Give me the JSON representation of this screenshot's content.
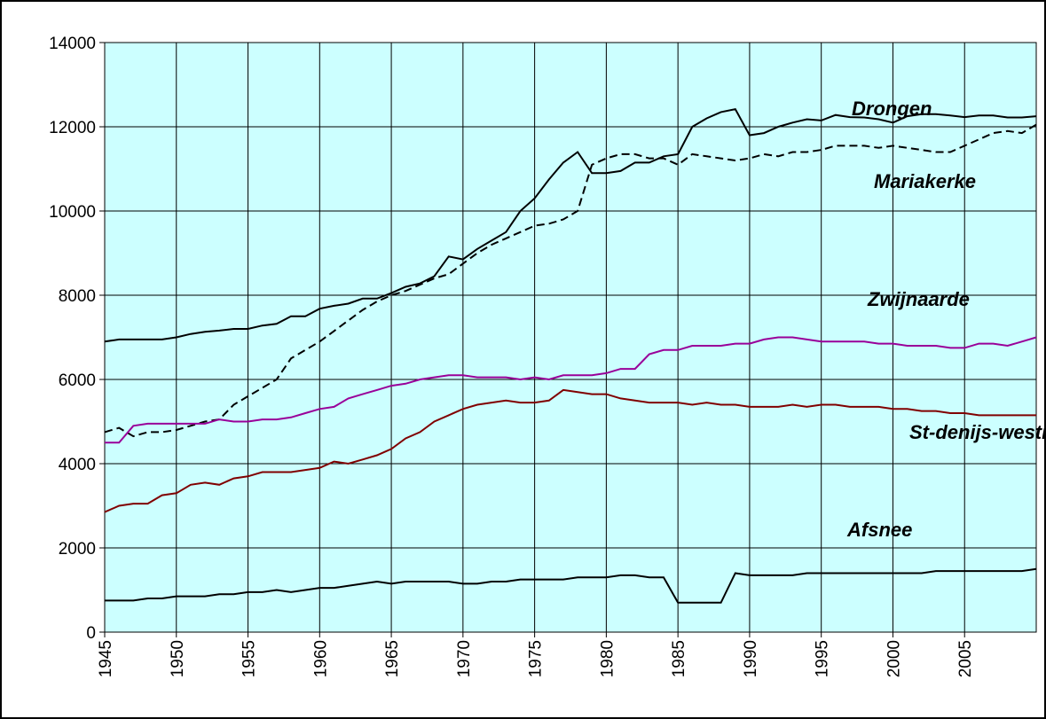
{
  "chart_data": {
    "type": "line",
    "x": [
      1945,
      1946,
      1947,
      1948,
      1949,
      1950,
      1951,
      1952,
      1953,
      1954,
      1955,
      1956,
      1957,
      1958,
      1959,
      1960,
      1961,
      1962,
      1963,
      1964,
      1965,
      1966,
      1967,
      1968,
      1969,
      1970,
      1971,
      1972,
      1973,
      1974,
      1975,
      1976,
      1977,
      1978,
      1979,
      1980,
      1981,
      1982,
      1983,
      1984,
      1985,
      1986,
      1987,
      1988,
      1989,
      1990,
      1991,
      1992,
      1993,
      1994,
      1995,
      1996,
      1997,
      1998,
      1999,
      2000,
      2001,
      2002,
      2003,
      2004,
      2005,
      2006,
      2007,
      2008,
      2009,
      2010
    ],
    "xlim": [
      1945,
      2010
    ],
    "xticks": [
      1945,
      1950,
      1955,
      1960,
      1965,
      1970,
      1975,
      1980,
      1985,
      1990,
      1995,
      2000,
      2005
    ],
    "ylim": [
      0,
      14000
    ],
    "yticks": [
      0,
      2000,
      4000,
      6000,
      8000,
      10000,
      12000,
      14000
    ],
    "grid": true,
    "series": [
      {
        "name": "Drongen",
        "color": "#000000",
        "style": "solid",
        "values": [
          6900,
          6950,
          6950,
          6950,
          6950,
          7000,
          7080,
          7130,
          7160,
          7200,
          7200,
          7280,
          7320,
          7500,
          7500,
          7680,
          7750,
          7800,
          7920,
          7920,
          8050,
          8200,
          8280,
          8450,
          8920,
          8850,
          9100,
          9300,
          9500,
          10000,
          10300,
          10750,
          11150,
          11400,
          10900,
          10900,
          10950,
          11150,
          11150,
          11300,
          11350,
          12000,
          12200,
          12350,
          12420,
          11800,
          11850,
          12000,
          12100,
          12180,
          12150,
          12280,
          12230,
          12220,
          12180,
          12100,
          12250,
          12300,
          12300,
          12270,
          12230,
          12270,
          12270,
          12220,
          12220,
          12250
        ]
      },
      {
        "name": "Mariakerke",
        "color": "#000000",
        "style": "dashed",
        "values": [
          4750,
          4850,
          4650,
          4750,
          4750,
          4800,
          4900,
          5000,
          5050,
          5400,
          5600,
          5800,
          6000,
          6500,
          6700,
          6900,
          7150,
          7400,
          7650,
          7850,
          8000,
          8100,
          8250,
          8400,
          8500,
          8750,
          9000,
          9200,
          9350,
          9500,
          9650,
          9700,
          9800,
          10000,
          11100,
          11250,
          11350,
          11350,
          11250,
          11250,
          11100,
          11350,
          11300,
          11250,
          11200,
          11250,
          11350,
          11300,
          11400,
          11400,
          11450,
          11550,
          11550,
          11550,
          11500,
          11550,
          11500,
          11450,
          11400,
          11400,
          11550,
          11700,
          11850,
          11900,
          11850,
          12050
        ]
      },
      {
        "name": "Zwijnaarde",
        "color": "#990099",
        "style": "solid",
        "values": [
          4500,
          4500,
          4900,
          4950,
          4950,
          4950,
          4950,
          4950,
          5050,
          5000,
          5000,
          5050,
          5050,
          5100,
          5200,
          5300,
          5350,
          5550,
          5650,
          5750,
          5850,
          5900,
          6000,
          6050,
          6100,
          6100,
          6050,
          6050,
          6050,
          6000,
          6050,
          6000,
          6100,
          6100,
          6100,
          6150,
          6250,
          6250,
          6600,
          6700,
          6700,
          6800,
          6800,
          6800,
          6850,
          6850,
          6950,
          7000,
          7000,
          6950,
          6900,
          6900,
          6900,
          6900,
          6850,
          6850,
          6800,
          6800,
          6800,
          6750,
          6750,
          6850,
          6850,
          6800,
          6900,
          7000
        ]
      },
      {
        "name": "St-denijs-westrem",
        "color": "#800000",
        "style": "solid",
        "values": [
          2850,
          3000,
          3050,
          3050,
          3250,
          3300,
          3500,
          3550,
          3500,
          3650,
          3700,
          3800,
          3800,
          3800,
          3850,
          3900,
          4050,
          4000,
          4100,
          4200,
          4350,
          4600,
          4750,
          5000,
          5150,
          5300,
          5400,
          5450,
          5500,
          5450,
          5450,
          5500,
          5750,
          5700,
          5650,
          5650,
          5550,
          5500,
          5450,
          5450,
          5450,
          5400,
          5450,
          5400,
          5400,
          5350,
          5350,
          5350,
          5400,
          5350,
          5400,
          5400,
          5350,
          5350,
          5350,
          5300,
          5300,
          5250,
          5250,
          5200,
          5200,
          5150,
          5150,
          5150,
          5150,
          5150
        ]
      },
      {
        "name": "Afsnee",
        "color": "#000000",
        "style": "solid",
        "values": [
          750,
          750,
          750,
          800,
          800,
          850,
          850,
          850,
          900,
          900,
          950,
          950,
          1000,
          950,
          1000,
          1050,
          1050,
          1100,
          1150,
          1200,
          1150,
          1200,
          1200,
          1200,
          1200,
          1150,
          1150,
          1200,
          1200,
          1250,
          1250,
          1250,
          1250,
          1300,
          1300,
          1300,
          1350,
          1350,
          1300,
          1300,
          700,
          700,
          700,
          700,
          1400,
          1350,
          1350,
          1350,
          1350,
          1400,
          1400,
          1400,
          1400,
          1400,
          1400,
          1400,
          1400,
          1400,
          1450,
          1450,
          1450,
          1450,
          1450,
          1450,
          1450,
          1500
        ]
      }
    ]
  }
}
